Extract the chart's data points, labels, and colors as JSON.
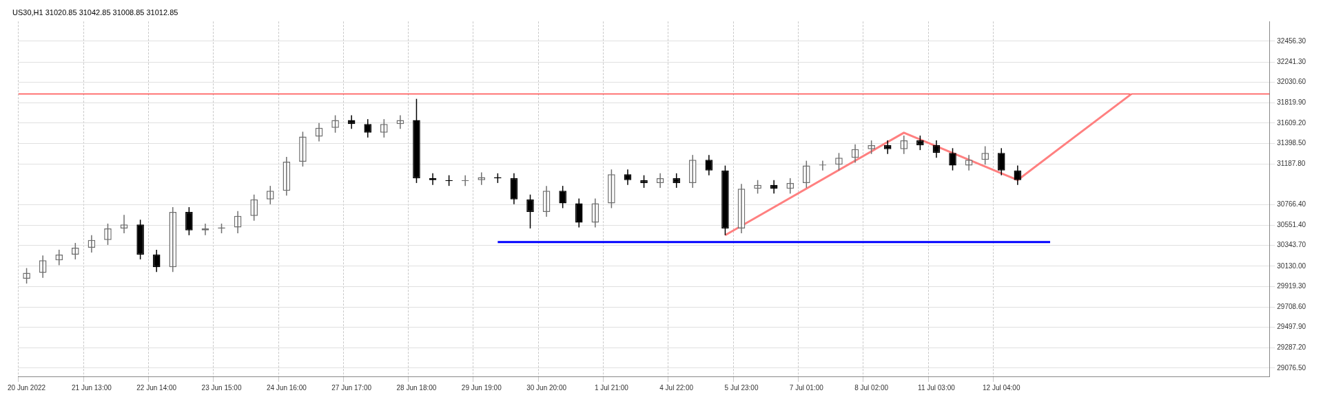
{
  "chart_data": {
    "type": "candlestick",
    "title": "US30,H1 31020.85 31042.85 31008.85 31012.85",
    "colors": [
      "#6e6e6e",
      "#6e6e6e",
      "#6e6e6e",
      "#6e6e6e",
      "#6e6e6e",
      "#6e6e6e",
      "#6e6e6e",
      "#000000",
      "#000000",
      "#6e6e6e",
      "#000000",
      "#6e6e6e",
      "#6e6e6e",
      "#6e6e6e",
      "#6e6e6e",
      "#6e6e6e",
      "#6e6e6e",
      "#6e6e6e",
      "#6e6e6e",
      "#6e6e6e",
      "#000000",
      "#000000",
      "#6e6e6e",
      "#6e6e6e",
      "#000000",
      "#000000",
      "#000000",
      "#6e6e6e",
      "#6e6e6e",
      "#000000",
      "#000000",
      "#000000",
      "#6e6e6e",
      "#000000",
      "#000000",
      "#6e6e6e",
      "#6e6e6e",
      "#000000",
      "#000000",
      "#6e6e6e",
      "#000000",
      "#6e6e6e",
      "#000000",
      "#000000",
      "#6e6e6e",
      "#6e6e6e",
      "#000000",
      "#6e6e6e",
      "#6e6e6e",
      "#6e6e6e",
      "#6e6e6e",
      "#6e6e6e",
      "#6e6e6e",
      "#000000",
      "#6e6e6e",
      "#000000",
      "#000000",
      "#000000",
      "#6e6e6e",
      "#6e6e6e",
      "#000000",
      "#000000",
      null,
      null,
      null,
      null,
      null,
      null,
      null,
      null,
      null,
      null,
      null,
      null,
      null,
      null,
      null
    ],
    "categories": [
      "20 Jun 2022",
      null,
      null,
      null,
      "21 Jun 13:00",
      null,
      null,
      null,
      "22 Jun 14:00",
      null,
      null,
      null,
      "23 Jun 15:00",
      null,
      null,
      null,
      "24 Jun 16:00",
      null,
      null,
      null,
      "27 Jun 17:00",
      null,
      null,
      null,
      "28 Jun 18:00",
      null,
      null,
      null,
      "29 Jun 19:00",
      null,
      null,
      null,
      "30 Jun 20:00",
      null,
      null,
      null,
      "1 Jul 21:00",
      null,
      null,
      null,
      "4 Jul 22:00",
      null,
      null,
      null,
      "5 Jul 23:00",
      null,
      null,
      null,
      "7 Jul 01:00",
      null,
      null,
      null,
      "8 Jul 02:00",
      null,
      null,
      null,
      "11 Jul 03:00",
      null,
      null,
      null,
      "12 Jul 04:00",
      null,
      null,
      null,
      null,
      null,
      null,
      null,
      null,
      null,
      null,
      null,
      null,
      null,
      null,
      null,
      null
    ],
    "ohlc": [
      [
        30000,
        30110,
        29950,
        30060
      ],
      [
        30060,
        30240,
        30010,
        30190
      ],
      [
        30190,
        30300,
        30140,
        30250
      ],
      [
        30250,
        30370,
        30200,
        30320
      ],
      [
        30320,
        30450,
        30270,
        30400
      ],
      [
        30400,
        30570,
        30350,
        30520
      ],
      [
        30520,
        30660,
        30470,
        30560
      ],
      [
        30560,
        30610,
        30200,
        30250
      ],
      [
        30250,
        30300,
        30070,
        30120
      ],
      [
        30120,
        30740,
        30070,
        30690
      ],
      [
        30690,
        30740,
        30450,
        30500
      ],
      [
        30500,
        30570,
        30450,
        30520
      ],
      [
        30520,
        30570,
        30470,
        30530
      ],
      [
        30530,
        30700,
        30470,
        30650
      ],
      [
        30650,
        30870,
        30600,
        30820
      ],
      [
        30820,
        30960,
        30770,
        30910
      ],
      [
        30910,
        31260,
        30860,
        31210
      ],
      [
        31210,
        31520,
        31160,
        31470
      ],
      [
        31470,
        31610,
        31420,
        31560
      ],
      [
        31560,
        31690,
        31510,
        31640
      ],
      [
        31640,
        31690,
        31550,
        31600
      ],
      [
        31600,
        31650,
        31460,
        31510
      ],
      [
        31510,
        31650,
        31460,
        31600
      ],
      [
        31600,
        31690,
        31550,
        31640
      ],
      [
        31640,
        31860,
        30990,
        31040
      ],
      [
        31040,
        31090,
        30970,
        31020
      ],
      [
        31020,
        31070,
        30960,
        31010
      ],
      [
        31010,
        31070,
        30960,
        31020
      ],
      [
        31020,
        31100,
        30970,
        31050
      ],
      [
        31050,
        31090,
        30990,
        31040
      ],
      [
        31040,
        31090,
        30770,
        30820
      ],
      [
        30820,
        30870,
        30520,
        30690
      ],
      [
        30690,
        30960,
        30640,
        30910
      ],
      [
        30910,
        30960,
        30730,
        30780
      ],
      [
        30780,
        30830,
        30530,
        30580
      ],
      [
        30580,
        30830,
        30530,
        30780
      ],
      [
        30780,
        31130,
        30730,
        31080
      ],
      [
        31080,
        31130,
        30970,
        31020
      ],
      [
        31020,
        31070,
        30940,
        30990
      ],
      [
        30990,
        31090,
        30940,
        31040
      ],
      [
        31040,
        31090,
        30940,
        30990
      ],
      [
        30990,
        31280,
        30940,
        31230
      ],
      [
        31230,
        31280,
        31070,
        31120
      ],
      [
        31120,
        31170,
        30450,
        30520
      ],
      [
        30520,
        30980,
        30470,
        30930
      ],
      [
        30930,
        31020,
        30880,
        30970
      ],
      [
        30970,
        31020,
        30880,
        30930
      ],
      [
        30930,
        31040,
        30880,
        30990
      ],
      [
        30990,
        31220,
        30940,
        31170
      ],
      [
        31170,
        31220,
        31120,
        31180
      ],
      [
        31180,
        31300,
        31120,
        31250
      ],
      [
        31250,
        31390,
        31200,
        31340
      ],
      [
        31340,
        31430,
        31290,
        31380
      ],
      [
        31380,
        31430,
        31290,
        31340
      ],
      [
        31340,
        31480,
        31290,
        31430
      ],
      [
        31430,
        31480,
        31330,
        31380
      ],
      [
        31380,
        31430,
        31250,
        31300
      ],
      [
        31300,
        31350,
        31120,
        31170
      ],
      [
        31170,
        31280,
        31120,
        31230
      ],
      [
        31230,
        31370,
        31180,
        31300
      ],
      [
        31300,
        31350,
        31070,
        31120
      ],
      [
        31120,
        31170,
        30970,
        31020
      ],
      null,
      null,
      null,
      null,
      null,
      null,
      null,
      null,
      null,
      null,
      null,
      null,
      null,
      null,
      null
    ],
    "series": [
      {
        "type": "line",
        "color": "#ff8080",
        "values": [
          null,
          null,
          null,
          null,
          null,
          null,
          null,
          null,
          null,
          null,
          null,
          null,
          null,
          null,
          null,
          null,
          null,
          null,
          null,
          null,
          null,
          null,
          null,
          null,
          null,
          null,
          null,
          null,
          null,
          null,
          null,
          null,
          null,
          null,
          null,
          null,
          null,
          null,
          null,
          null,
          null,
          null,
          null,
          30450,
          null,
          null,
          null,
          null,
          null,
          null,
          null,
          null,
          null,
          null,
          31510,
          null,
          null,
          null,
          null,
          null,
          null,
          31020,
          null,
          null,
          null,
          null,
          null,
          null,
          31910,
          null,
          null,
          null,
          null,
          null,
          null,
          null,
          null
        ]
      },
      {
        "type": "line",
        "color": "#0000ff",
        "values": [
          null,
          null,
          null,
          null,
          null,
          null,
          null,
          null,
          null,
          null,
          null,
          null,
          null,
          null,
          null,
          null,
          null,
          null,
          null,
          null,
          null,
          null,
          null,
          null,
          null,
          null,
          null,
          null,
          null,
          30380,
          30380,
          30380,
          30380,
          30380,
          30380,
          30380,
          30380,
          30380,
          30380,
          30380,
          30380,
          30380,
          30380,
          30380,
          30380,
          30380,
          30380,
          30380,
          30380,
          30380,
          30380,
          30380,
          30380,
          30380,
          30380,
          30380,
          30380,
          30380,
          30380,
          30380,
          30380,
          30380,
          30380,
          30380,
          null,
          null,
          null,
          null,
          null,
          null,
          null,
          null,
          null,
          null,
          null,
          null,
          null
        ]
      }
    ],
    "ylim": [
      28990,
      32660
    ],
    "yticks": [
      {
        "value": 29076.5,
        "label": "29076.50"
      },
      {
        "value": 29287.2,
        "label": "29287.20"
      },
      {
        "value": 29497.9,
        "label": "29497.90"
      },
      {
        "value": 29708.6,
        "label": "29708.60"
      },
      {
        "value": 29919.3,
        "label": "29919.30"
      },
      {
        "value": 30130,
        "label": "30130.00"
      },
      {
        "value": 30343.7,
        "label": "30343.70"
      },
      {
        "value": 30551.4,
        "label": "30551.40"
      },
      {
        "value": 30766.4,
        "label": "30766.40"
      },
      {
        "value": 31187.8,
        "label": "31187.80"
      },
      {
        "value": 31398.5,
        "label": "31398.50"
      },
      {
        "value": 31609.2,
        "label": "31609.20"
      },
      {
        "value": 31819.9,
        "label": "31819.90"
      },
      {
        "value": 32030.6,
        "label": "32030.60"
      },
      {
        "value": 32241.3,
        "label": "32241.30"
      },
      {
        "value": 32456.3,
        "label": "32456.30"
      }
    ],
    "ref_lines": [
      {
        "axis": "y",
        "value": 31910,
        "color": "#ff0000"
      }
    ],
    "grid": true,
    "legend": false
  }
}
